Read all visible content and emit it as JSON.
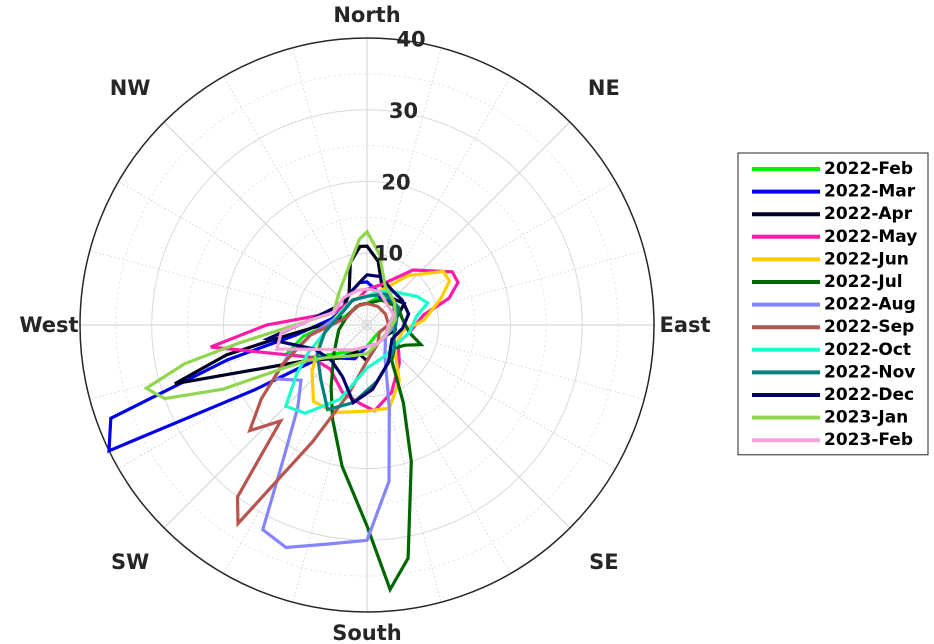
{
  "chart_data": {
    "type": "polar-line",
    "title": "",
    "directions": [
      "North",
      "NE",
      "East",
      "SE",
      "South",
      "SW",
      "West",
      "NW"
    ],
    "rlim": [
      0,
      40
    ],
    "rticks": [
      10,
      20,
      30,
      40
    ],
    "rtick_labels": [
      "10",
      "20",
      "30",
      "40"
    ],
    "grid": true,
    "legend_position": "right",
    "series": [
      {
        "name": "2022-Feb",
        "color": "#00ee00",
        "points": [
          [
            0,
            3
          ],
          [
            20,
            4
          ],
          [
            40,
            5
          ],
          [
            60,
            5
          ],
          [
            90,
            3
          ],
          [
            120,
            2
          ],
          [
            150,
            2
          ],
          [
            180,
            3
          ],
          [
            200,
            4
          ],
          [
            220,
            5
          ],
          [
            240,
            9
          ],
          [
            250,
            12
          ],
          [
            260,
            9
          ],
          [
            280,
            4
          ],
          [
            300,
            3
          ],
          [
            330,
            3
          ],
          [
            350,
            3
          ]
        ]
      },
      {
        "name": "2022-Mar",
        "color": "#0000ee",
        "points": [
          [
            0,
            6
          ],
          [
            15,
            5
          ],
          [
            30,
            4
          ],
          [
            50,
            5
          ],
          [
            70,
            4
          ],
          [
            90,
            3
          ],
          [
            120,
            3
          ],
          [
            150,
            3
          ],
          [
            180,
            3
          ],
          [
            200,
            5
          ],
          [
            220,
            6
          ],
          [
            235,
            8
          ],
          [
            240,
            18
          ],
          [
            244,
            40
          ],
          [
            250,
            38
          ],
          [
            256,
            20
          ],
          [
            262,
            10
          ],
          [
            280,
            5
          ],
          [
            300,
            4
          ],
          [
            330,
            5
          ],
          [
            350,
            6
          ]
        ]
      },
      {
        "name": "2022-Apr",
        "color": "#000022",
        "points": [
          [
            0,
            11
          ],
          [
            10,
            9
          ],
          [
            20,
            6
          ],
          [
            40,
            5
          ],
          [
            60,
            6
          ],
          [
            80,
            4
          ],
          [
            100,
            4
          ],
          [
            120,
            3
          ],
          [
            150,
            3
          ],
          [
            180,
            5
          ],
          [
            200,
            4
          ],
          [
            220,
            6
          ],
          [
            240,
            10
          ],
          [
            253,
            28
          ],
          [
            258,
            20
          ],
          [
            262,
            12
          ],
          [
            280,
            4
          ],
          [
            300,
            4
          ],
          [
            330,
            5
          ],
          [
            345,
            9
          ],
          [
            355,
            11
          ]
        ]
      },
      {
        "name": "2022-May",
        "color": "#ff1aa8",
        "points": [
          [
            0,
            5
          ],
          [
            20,
            6
          ],
          [
            40,
            10
          ],
          [
            58,
            14
          ],
          [
            65,
            14
          ],
          [
            72,
            12
          ],
          [
            80,
            8
          ],
          [
            100,
            6
          ],
          [
            120,
            5
          ],
          [
            140,
            7
          ],
          [
            160,
            10
          ],
          [
            175,
            12
          ],
          [
            185,
            11
          ],
          [
            200,
            10
          ],
          [
            220,
            8
          ],
          [
            240,
            9
          ],
          [
            262,
            22
          ],
          [
            270,
            14
          ],
          [
            290,
            5
          ],
          [
            320,
            4
          ],
          [
            345,
            4
          ]
        ]
      },
      {
        "name": "2022-Jun",
        "color": "#ffcc00",
        "points": [
          [
            0,
            4
          ],
          [
            20,
            5
          ],
          [
            40,
            9
          ],
          [
            55,
            13
          ],
          [
            62,
            13
          ],
          [
            70,
            11
          ],
          [
            85,
            8
          ],
          [
            100,
            5
          ],
          [
            130,
            5
          ],
          [
            150,
            9
          ],
          [
            165,
            12
          ],
          [
            180,
            12
          ],
          [
            200,
            13
          ],
          [
            215,
            13
          ],
          [
            230,
            10
          ],
          [
            250,
            7
          ],
          [
            275,
            5
          ],
          [
            300,
            4
          ],
          [
            330,
            4
          ],
          [
            350,
            4
          ]
        ]
      },
      {
        "name": "2022-Jul",
        "color": "#006600",
        "points": [
          [
            0,
            3
          ],
          [
            30,
            4
          ],
          [
            60,
            5
          ],
          [
            80,
            5
          ],
          [
            100,
            6
          ],
          [
            110,
            8
          ],
          [
            118,
            6
          ],
          [
            130,
            5
          ],
          [
            145,
            6
          ],
          [
            155,
            12
          ],
          [
            162,
            20
          ],
          [
            170,
            33
          ],
          [
            175,
            37
          ],
          [
            180,
            28
          ],
          [
            190,
            20
          ],
          [
            200,
            14
          ],
          [
            210,
            10
          ],
          [
            230,
            6
          ],
          [
            260,
            4
          ],
          [
            300,
            3
          ],
          [
            340,
            3
          ]
        ]
      },
      {
        "name": "2022-Aug",
        "color": "#8585ff",
        "points": [
          [
            0,
            4
          ],
          [
            30,
            5
          ],
          [
            60,
            5
          ],
          [
            90,
            4
          ],
          [
            120,
            3
          ],
          [
            150,
            5
          ],
          [
            165,
            12
          ],
          [
            172,
            22
          ],
          [
            180,
            30
          ],
          [
            190,
            31
          ],
          [
            200,
            33
          ],
          [
            207,
            32
          ],
          [
            212,
            22
          ],
          [
            220,
            15
          ],
          [
            230,
            12
          ],
          [
            240,
            15
          ],
          [
            248,
            12
          ],
          [
            260,
            8
          ],
          [
            290,
            4
          ],
          [
            330,
            4
          ]
        ]
      },
      {
        "name": "2022-Sep",
        "color": "#b85450",
        "points": [
          [
            0,
            3
          ],
          [
            30,
            3
          ],
          [
            60,
            3
          ],
          [
            90,
            3
          ],
          [
            120,
            2
          ],
          [
            150,
            3
          ],
          [
            180,
            5
          ],
          [
            195,
            10
          ],
          [
            205,
            18
          ],
          [
            213,
            33
          ],
          [
            217,
            30
          ],
          [
            222,
            18
          ],
          [
            228,
            22
          ],
          [
            235,
            18
          ],
          [
            245,
            13
          ],
          [
            260,
            8
          ],
          [
            290,
            3
          ],
          [
            330,
            3
          ]
        ]
      },
      {
        "name": "2022-Oct",
        "color": "#1affcc",
        "points": [
          [
            0,
            4
          ],
          [
            20,
            5
          ],
          [
            40,
            6
          ],
          [
            60,
            8
          ],
          [
            70,
            9
          ],
          [
            80,
            7
          ],
          [
            100,
            6
          ],
          [
            120,
            5
          ],
          [
            150,
            5
          ],
          [
            180,
            6
          ],
          [
            200,
            11
          ],
          [
            215,
            15
          ],
          [
            225,
            16
          ],
          [
            235,
            12
          ],
          [
            245,
            9
          ],
          [
            270,
            5
          ],
          [
            300,
            4
          ],
          [
            330,
            4
          ]
        ]
      },
      {
        "name": "2022-Nov",
        "color": "#008080",
        "points": [
          [
            0,
            4
          ],
          [
            30,
            5
          ],
          [
            60,
            5
          ],
          [
            90,
            4
          ],
          [
            110,
            4
          ],
          [
            130,
            5
          ],
          [
            150,
            6
          ],
          [
            170,
            8
          ],
          [
            190,
            11
          ],
          [
            205,
            13
          ],
          [
            220,
            10
          ],
          [
            240,
            8
          ],
          [
            260,
            6
          ],
          [
            290,
            4
          ],
          [
            330,
            4
          ]
        ]
      },
      {
        "name": "2022-Dec",
        "color": "#000066",
        "points": [
          [
            0,
            7
          ],
          [
            15,
            7
          ],
          [
            35,
            6
          ],
          [
            55,
            6
          ],
          [
            75,
            6
          ],
          [
            95,
            5
          ],
          [
            120,
            4
          ],
          [
            150,
            6
          ],
          [
            175,
            9
          ],
          [
            190,
            11
          ],
          [
            205,
            8
          ],
          [
            225,
            7
          ],
          [
            245,
            8
          ],
          [
            262,
            14
          ],
          [
            275,
            8
          ],
          [
            300,
            5
          ],
          [
            330,
            5
          ],
          [
            350,
            6
          ]
        ]
      },
      {
        "name": "2023-Jan",
        "color": "#8fd64e",
        "points": [
          [
            0,
            13
          ],
          [
            10,
            10
          ],
          [
            25,
            6
          ],
          [
            50,
            5
          ],
          [
            80,
            4
          ],
          [
            110,
            3
          ],
          [
            150,
            3
          ],
          [
            180,
            4
          ],
          [
            210,
            5
          ],
          [
            230,
            7
          ],
          [
            240,
            10
          ],
          [
            246,
            22
          ],
          [
            250,
            30
          ],
          [
            254,
            32
          ],
          [
            258,
            26
          ],
          [
            262,
            18
          ],
          [
            270,
            10
          ],
          [
            290,
            5
          ],
          [
            320,
            6
          ],
          [
            345,
            9
          ],
          [
            355,
            12
          ]
        ]
      },
      {
        "name": "2023-Feb",
        "color": "#f5a3d9",
        "points": [
          [
            0,
            5
          ],
          [
            20,
            5
          ],
          [
            45,
            4
          ],
          [
            70,
            4
          ],
          [
            90,
            3
          ],
          [
            120,
            3
          ],
          [
            150,
            3
          ],
          [
            180,
            3
          ],
          [
            210,
            4
          ],
          [
            235,
            6
          ],
          [
            248,
            9
          ],
          [
            255,
            13
          ],
          [
            265,
            12
          ],
          [
            275,
            8
          ],
          [
            290,
            5
          ],
          [
            320,
            5
          ],
          [
            345,
            5
          ]
        ]
      }
    ]
  }
}
